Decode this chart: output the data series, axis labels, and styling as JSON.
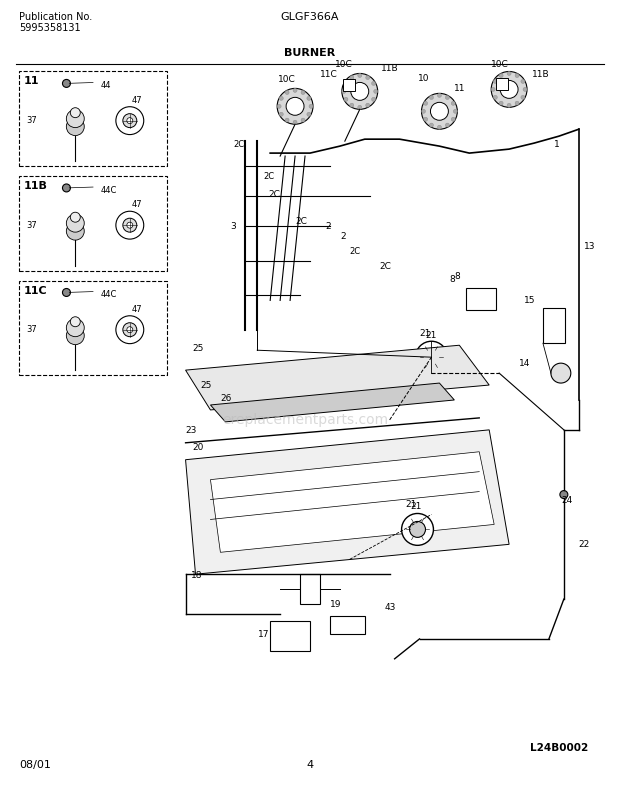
{
  "title_center": "GLGF366A",
  "title_section": "BURNER",
  "pub_no_label": "Publication No.",
  "pub_no_value": "5995358131",
  "date_label": "08/01",
  "page_number": "4",
  "diagram_code": "L24B0002",
  "background_color": "#ffffff",
  "watermark_text": "ereplacementparts.com",
  "watermark_color": "#bbbbbb"
}
